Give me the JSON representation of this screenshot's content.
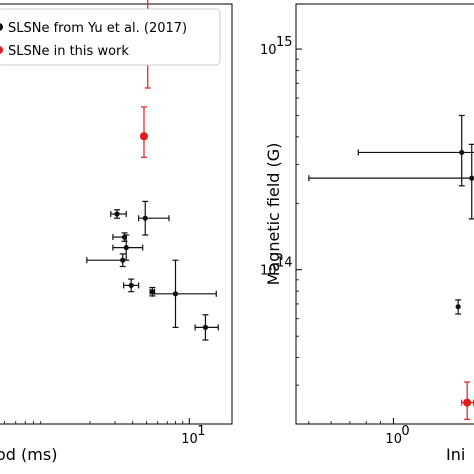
{
  "colors": {
    "black_series": "#111111",
    "red_series": "#e41a1c",
    "legend_border": "#cccccc"
  },
  "legend": {
    "entries": [
      {
        "label": "SLSNe from Yu et al. (2017)",
        "color": "#111111"
      },
      {
        "label": "SLSNe in this work",
        "color": "#e41a1c"
      }
    ],
    "placement": "top-left"
  },
  "chart_data": [
    {
      "type": "scatter",
      "xlabel": "od (ms)",
      "xscale": "log",
      "xlim": [
        0.45,
        20
      ],
      "ylim": [
        0,
        10
      ],
      "x_ticks": [
        {
          "value": 10,
          "label": "10",
          "exp": "1"
        }
      ],
      "grid": false,
      "series": [
        {
          "color": "#111111",
          "points": [
            {
              "x": 3.1,
              "y": 5.0,
              "xerr": [
                0.3,
                0.5
              ],
              "yerr": [
                0.1,
                0.1
              ]
            },
            {
              "x": 4.9,
              "y": 4.9,
              "xerr": [
                0.5,
                2.3
              ],
              "yerr": [
                0.4,
                0.4
              ]
            },
            {
              "x": 3.5,
              "y": 4.45,
              "xerr": [
                0.6,
                0.0
              ],
              "yerr": [
                0.1,
                0.1
              ]
            },
            {
              "x": 3.6,
              "y": 4.2,
              "xerr": [
                0.7,
                1.1
              ],
              "yerr": [
                0.3,
                0.3
              ]
            },
            {
              "x": 3.4,
              "y": 3.9,
              "xerr": [
                1.5,
                0.0
              ],
              "yerr": [
                0.15,
                0.15
              ]
            },
            {
              "x": 3.9,
              "y": 3.3,
              "xerr": [
                0.45,
                0.5
              ],
              "yerr": [
                0.15,
                0.15
              ]
            },
            {
              "x": 5.5,
              "y": 3.15,
              "xerr": [
                0.2,
                0.2
              ],
              "yerr": [
                0.1,
                0.1
              ]
            },
            {
              "x": 8.0,
              "y": 3.1,
              "xerr": [
                2.5,
                7.5
              ],
              "yerr": [
                0.8,
                0.8
              ]
            },
            {
              "x": 13.0,
              "y": 2.3,
              "xerr": [
                2.0,
                3.0
              ],
              "yerr": [
                0.3,
                0.3
              ]
            }
          ]
        },
        {
          "color": "#e41a1c",
          "points": [
            {
              "x": 5.1,
              "y": 9.0,
              "xerr": [
                0.0,
                0.0
              ],
              "yerr": [
                1.0,
                1.8
              ]
            },
            {
              "x": 4.8,
              "y": 6.85,
              "xerr": [
                0.2,
                0.2
              ],
              "yerr": [
                0.5,
                0.7
              ]
            }
          ]
        }
      ]
    },
    {
      "type": "scatter",
      "xlabel": "Ini",
      "ylabel": "Magnetic field (G)",
      "xscale": "log",
      "yscale": "log",
      "xlim": [
        0.45,
        2.0
      ],
      "ylim": [
        20000000000000.0,
        1600000000000000.0
      ],
      "x_ticks": [
        {
          "value": 1,
          "label": "10",
          "exp": "0"
        }
      ],
      "y_ticks": [
        {
          "value": 100000000000000.0,
          "label": "10",
          "exp": "14"
        },
        {
          "value": 1000000000000000.0,
          "label": "10",
          "exp": "15"
        }
      ],
      "grid": false,
      "series": [
        {
          "color": "#111111",
          "points": [
            {
              "x": 1.75,
              "y": 340000000000000.0,
              "xerr": [
                1.0,
                0.3
              ],
              "yerr": [
                100000000000000.0,
                160000000000000.0
              ]
            },
            {
              "x": 1.9,
              "y": 260000000000000.0,
              "xerr": [
                1.4,
                0.15
              ],
              "yerr": [
                90000000000000.0,
                110000000000000.0
              ]
            },
            {
              "x": 1.7,
              "y": 68000000000000.0,
              "xerr": [
                0.0,
                0.0
              ],
              "yerr": [
                5000000000000.0,
                5000000000000.0
              ]
            }
          ]
        },
        {
          "color": "#e41a1c",
          "points": [
            {
              "x": 1.83,
              "y": 25000000000000.0,
              "xerr": [
                0.08,
                0.1
              ],
              "yerr": [
                4000000000000.0,
                6000000000000.0
              ]
            }
          ]
        }
      ]
    }
  ]
}
